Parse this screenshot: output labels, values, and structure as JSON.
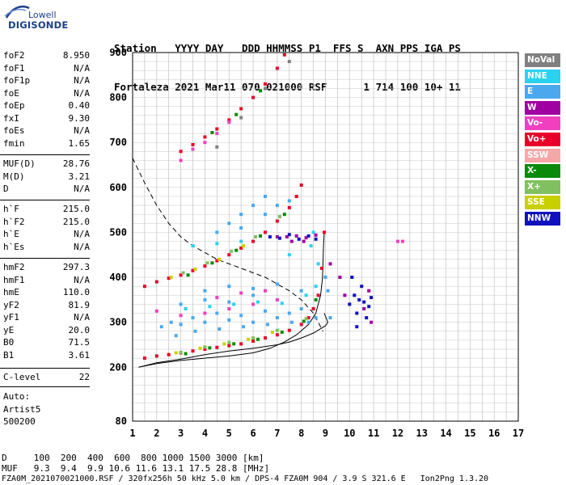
{
  "logo": {
    "line1": "Lowell",
    "line2": "DIGISONDE"
  },
  "header": {
    "line1": "Station   YYYY DAY   DDD HHMMSS P1  FFS S  AXN PPS IGA PS",
    "line2": "Fortaleza 2021 Mar11 070 021000 RSF      1 714 100 10+ 11"
  },
  "params_group1": [
    {
      "name": "foF2",
      "value": "8.950"
    },
    {
      "name": "foF1",
      "value": "N/A"
    },
    {
      "name": "foF1p",
      "value": "N/A"
    },
    {
      "name": "foE",
      "value": "N/A"
    },
    {
      "name": "foEp",
      "value": "0.40"
    },
    {
      "name": "fxI",
      "value": "9.30"
    },
    {
      "name": "foEs",
      "value": "N/A"
    },
    {
      "name": "fmin",
      "value": "1.65"
    }
  ],
  "params_group2": [
    {
      "name": "MUF(D)",
      "value": "28.76"
    },
    {
      "name": "M(D)",
      "value": "3.21"
    },
    {
      "name": "D",
      "value": "N/A"
    }
  ],
  "params_group3": [
    {
      "name": "h`F",
      "value": "215.0"
    },
    {
      "name": "h`F2",
      "value": "215.0"
    },
    {
      "name": "h`E",
      "value": "N/A"
    },
    {
      "name": "h`Es",
      "value": "N/A"
    }
  ],
  "params_group4": [
    {
      "name": "hmF2",
      "value": "297.3"
    },
    {
      "name": "hmF1",
      "value": "N/A"
    },
    {
      "name": "hmE",
      "value": "110.0"
    },
    {
      "name": "yF2",
      "value": "81.9"
    },
    {
      "name": "yF1",
      "value": "N/A"
    },
    {
      "name": "yE",
      "value": "20.0"
    },
    {
      "name": "B0",
      "value": "71.5"
    },
    {
      "name": "B1",
      "value": "3.61"
    }
  ],
  "params_group5": [
    {
      "name": "C-level",
      "value": "22"
    }
  ],
  "autoscaling": {
    "line1": "Auto:",
    "line2": "Artist5",
    "line3": "500200"
  },
  "legend": [
    {
      "label": "NoVal",
      "color": "#808080"
    },
    {
      "label": "NNE",
      "color": "#2ad1f0"
    },
    {
      "label": "E",
      "color": "#4aa8ee"
    },
    {
      "label": "W",
      "color": "#a000a0"
    },
    {
      "label": "Vo-",
      "color": "#f040c0"
    },
    {
      "label": "Vo+",
      "color": "#e8002a"
    },
    {
      "label": "SSW",
      "color": "#f4a8a8"
    },
    {
      "label": "X-",
      "color": "#0a8a0a"
    },
    {
      "label": "X+",
      "color": "#80c060"
    },
    {
      "label": "SSE",
      "color": "#c8d000"
    },
    {
      "label": "NNW",
      "color": "#1010c0"
    }
  ],
  "footer": {
    "line1": "D     100  200  400  600  800 1000 1500 3000 [km]",
    "line2": "MUF   9.3  9.4  9.9 10.6 11.6 13.1 17.5 28.8 [MHz]",
    "line3": "FZA0M_2021070021000.RSF / 320fx256h 50 kHz 5.0 km / DPS-4 FZA0M 904 / 3.9 S 321.6 E   Ion2Png 1.3.20"
  },
  "chart_data": {
    "type": "scatter",
    "xlim": [
      1,
      17
    ],
    "ylim": [
      80,
      900
    ],
    "x_ticks": [
      1,
      2,
      3,
      4,
      5,
      6,
      7,
      8,
      9,
      10,
      11,
      12,
      13,
      14,
      15,
      16,
      17
    ],
    "y_ticks": [
      80,
      200,
      300,
      400,
      500,
      600,
      700,
      800,
      900
    ],
    "grid": true,
    "legend_position": "right",
    "series": [
      {
        "name": "Vo+",
        "color": "#e8002a",
        "points": [
          [
            1.5,
            220
          ],
          [
            2,
            225
          ],
          [
            2.5,
            228
          ],
          [
            3,
            232
          ],
          [
            3.5,
            236
          ],
          [
            4,
            240
          ],
          [
            4.5,
            244
          ],
          [
            5,
            248
          ],
          [
            5.5,
            252
          ],
          [
            6,
            258
          ],
          [
            6.5,
            265
          ],
          [
            7,
            272
          ],
          [
            7.5,
            282
          ],
          [
            8,
            295
          ],
          [
            8.3,
            310
          ],
          [
            8.5,
            330
          ],
          [
            8.7,
            360
          ],
          [
            8.85,
            420
          ],
          [
            8.95,
            500
          ],
          [
            1.5,
            380
          ],
          [
            2,
            390
          ],
          [
            2.5,
            398
          ],
          [
            3,
            405
          ],
          [
            3.5,
            415
          ],
          [
            4,
            425
          ],
          [
            4.5,
            437
          ],
          [
            5,
            450
          ],
          [
            5.5,
            465
          ],
          [
            6,
            480
          ],
          [
            6.5,
            500
          ],
          [
            7,
            525
          ],
          [
            7.5,
            555
          ],
          [
            7.8,
            580
          ],
          [
            8,
            605
          ],
          [
            3,
            680
          ],
          [
            3.5,
            695
          ],
          [
            4,
            712
          ],
          [
            4.5,
            730
          ],
          [
            5,
            750
          ],
          [
            5.5,
            775
          ],
          [
            6,
            800
          ],
          [
            6.5,
            830
          ],
          [
            7,
            865
          ],
          [
            7.3,
            895
          ]
        ]
      },
      {
        "name": "X-",
        "color": "#0a8a0a",
        "points": [
          [
            3.2,
            230
          ],
          [
            4.2,
            243
          ],
          [
            5.2,
            252
          ],
          [
            6.2,
            262
          ],
          [
            7.2,
            278
          ],
          [
            8.1,
            302
          ],
          [
            8.6,
            350
          ],
          [
            3.3,
            405
          ],
          [
            4.3,
            432
          ],
          [
            5.3,
            460
          ],
          [
            6.3,
            492
          ],
          [
            7.3,
            540
          ],
          [
            4.3,
            722
          ],
          [
            5.3,
            762
          ],
          [
            6.3,
            815
          ]
        ]
      },
      {
        "name": "X+",
        "color": "#80c060",
        "points": [
          [
            3,
            233
          ],
          [
            4,
            245
          ],
          [
            5,
            255
          ],
          [
            6,
            265
          ],
          [
            7,
            282
          ],
          [
            8.2,
            308
          ],
          [
            3.1,
            410
          ],
          [
            4.1,
            432
          ],
          [
            5.1,
            458
          ],
          [
            6.1,
            490
          ],
          [
            7.1,
            535
          ]
        ]
      },
      {
        "name": "SSE",
        "color": "#c8d000",
        "points": [
          [
            2.8,
            232
          ],
          [
            3.8,
            242
          ],
          [
            4.8,
            252
          ],
          [
            5.8,
            262
          ],
          [
            6.8,
            278
          ],
          [
            2.6,
            400
          ],
          [
            3.6,
            418
          ],
          [
            4.6,
            440
          ],
          [
            5.6,
            470
          ]
        ]
      },
      {
        "name": "E",
        "color": "#4aa8ee",
        "points": [
          [
            2.2,
            290
          ],
          [
            2.6,
            300
          ],
          [
            3,
            295
          ],
          [
            3.5,
            310
          ],
          [
            4,
            300
          ],
          [
            4.5,
            320
          ],
          [
            5,
            305
          ],
          [
            5.5,
            315
          ],
          [
            6,
            300
          ],
          [
            6.5,
            325
          ],
          [
            7,
            310
          ],
          [
            7.5,
            320
          ],
          [
            8,
            330
          ],
          [
            8.3,
            300
          ],
          [
            3,
            340
          ],
          [
            4,
            350
          ],
          [
            5,
            345
          ],
          [
            6,
            360
          ],
          [
            7,
            350
          ],
          [
            8,
            370
          ],
          [
            4,
            370
          ],
          [
            5,
            380
          ],
          [
            6,
            375
          ],
          [
            7,
            385
          ],
          [
            2.8,
            270
          ],
          [
            3.6,
            280
          ],
          [
            4.6,
            285
          ],
          [
            5.6,
            290
          ],
          [
            6.6,
            295
          ],
          [
            7.6,
            300
          ],
          [
            8.6,
            310
          ],
          [
            4.5,
            500
          ],
          [
            5,
            520
          ],
          [
            5.5,
            540
          ],
          [
            6,
            560
          ],
          [
            6.5,
            580
          ],
          [
            5.5,
            510
          ],
          [
            6.5,
            540
          ],
          [
            7,
            560
          ],
          [
            7.5,
            570
          ],
          [
            9,
            400
          ],
          [
            9.1,
            370
          ],
          [
            9.2,
            310
          ]
        ]
      },
      {
        "name": "NNE",
        "color": "#2ad1f0",
        "points": [
          [
            3.2,
            330
          ],
          [
            4.2,
            335
          ],
          [
            5.2,
            340
          ],
          [
            6.2,
            345
          ],
          [
            7.2,
            342
          ],
          [
            8.2,
            360
          ],
          [
            8.6,
            380
          ],
          [
            8.4,
            470
          ],
          [
            8.5,
            500
          ],
          [
            3.5,
            470
          ],
          [
            4.5,
            475
          ],
          [
            5.5,
            480
          ],
          [
            7.5,
            450
          ],
          [
            8.7,
            430
          ]
        ]
      },
      {
        "name": "W",
        "color": "#a000a0",
        "points": [
          [
            7,
            490
          ],
          [
            7.4,
            490
          ],
          [
            7.8,
            492
          ],
          [
            8.2,
            488
          ],
          [
            8.6,
            494
          ],
          [
            7.6,
            480
          ],
          [
            8.1,
            480
          ],
          [
            9.2,
            430
          ],
          [
            9.6,
            400
          ],
          [
            9.8,
            360
          ],
          [
            10.8,
            370
          ],
          [
            10.9,
            300
          ],
          [
            10.6,
            330
          ]
        ]
      },
      {
        "name": "NNW",
        "color": "#1010c0",
        "points": [
          [
            6.7,
            490
          ],
          [
            7.1,
            487
          ],
          [
            7.5,
            495
          ],
          [
            7.9,
            485
          ],
          [
            8.3,
            492
          ],
          [
            8.6,
            485
          ],
          [
            10,
            340
          ],
          [
            10.2,
            360
          ],
          [
            10.4,
            350
          ],
          [
            10.6,
            345
          ],
          [
            10.8,
            335
          ],
          [
            10.3,
            320
          ],
          [
            10.5,
            380
          ],
          [
            10.1,
            400
          ],
          [
            10.7,
            310
          ],
          [
            10.3,
            290
          ],
          [
            10.9,
            355
          ]
        ]
      },
      {
        "name": "Vo-",
        "color": "#f040c0",
        "points": [
          [
            2,
            325
          ],
          [
            3,
            315
          ],
          [
            4,
            320
          ],
          [
            5,
            330
          ],
          [
            6,
            340
          ],
          [
            7,
            350
          ],
          [
            4.5,
            355
          ],
          [
            5.5,
            365
          ],
          [
            6.5,
            370
          ],
          [
            3,
            660
          ],
          [
            3.5,
            685
          ],
          [
            4,
            700
          ],
          [
            4.5,
            720
          ],
          [
            5,
            745
          ],
          [
            12,
            480
          ],
          [
            12.2,
            480
          ]
        ]
      },
      {
        "name": "NoVal",
        "color": "#808080",
        "points": [
          [
            4.5,
            690
          ],
          [
            5.5,
            755
          ],
          [
            6.5,
            820
          ],
          [
            7.5,
            880
          ]
        ]
      }
    ],
    "curves": [
      {
        "name": "dashed",
        "style": "dashed",
        "points": [
          [
            1,
            665
          ],
          [
            1.5,
            610
          ],
          [
            2,
            560
          ],
          [
            2.5,
            520
          ],
          [
            3,
            490
          ],
          [
            3.5,
            470
          ],
          [
            4,
            455
          ],
          [
            4.5,
            440
          ],
          [
            5,
            430
          ],
          [
            5.5,
            420
          ],
          [
            6,
            410
          ],
          [
            6.5,
            400
          ],
          [
            7,
            385
          ],
          [
            7.5,
            370
          ],
          [
            8,
            350
          ],
          [
            8.5,
            320
          ],
          [
            8.75,
            295
          ],
          [
            8.9,
            280
          ]
        ]
      },
      {
        "name": "solid-left",
        "style": "solid",
        "points": [
          [
            1.25,
            200
          ],
          [
            2,
            208
          ],
          [
            3,
            215
          ],
          [
            4,
            220
          ],
          [
            5,
            225
          ],
          [
            6,
            232
          ],
          [
            6.7,
            242
          ],
          [
            7.3,
            256
          ],
          [
            7.8,
            272
          ],
          [
            8.3,
            295
          ],
          [
            8.6,
            320
          ],
          [
            8.8,
            360
          ],
          [
            8.88,
            400
          ],
          [
            8.92,
            470
          ],
          [
            8.95,
            500
          ]
        ]
      },
      {
        "name": "solid-right",
        "style": "solid",
        "points": [
          [
            1.25,
            200
          ],
          [
            2,
            210
          ],
          [
            3,
            218
          ],
          [
            4,
            228
          ],
          [
            5,
            236
          ],
          [
            6,
            242
          ],
          [
            7,
            250
          ],
          [
            7.5,
            256
          ],
          [
            8,
            265
          ],
          [
            8.5,
            276
          ],
          [
            9,
            292
          ],
          [
            9.1,
            300
          ],
          [
            8.95,
            320
          ]
        ]
      }
    ]
  }
}
